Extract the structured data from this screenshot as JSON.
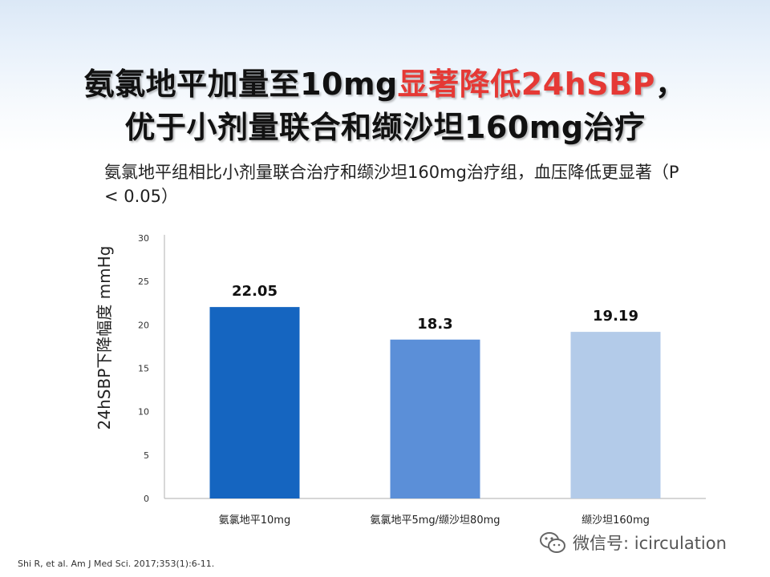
{
  "title": {
    "line1_a": "氨氯地平加量至10mg",
    "line1_b": "显著降低24hSBP",
    "line1_c": "，",
    "line2": "优于小剂量联合和缬沙坦160mg治疗",
    "highlight_color": "#e53935"
  },
  "subtitle": "氨氯地平组相比小剂量联合治疗和缬沙坦160mg治疗组，血压降低更显著（P < 0.05）",
  "citation": "Shi R, et al. Am J Med Sci. 2017;353(1):6-11.",
  "watermark": {
    "icon": "wechat-icon",
    "text": "微信号: icirculation"
  },
  "chart_data": {
    "type": "bar",
    "title": "",
    "ylabel": "24hSBP下降幅度 mmHg",
    "xlabel": "",
    "ylim": [
      0,
      30
    ],
    "yticks": [
      0,
      5,
      10,
      15,
      20,
      25,
      30
    ],
    "categories": [
      "氨氯地平10mg",
      "氨氯地平5mg/缬沙坦80mg",
      "缬沙坦160mg"
    ],
    "values": [
      22.05,
      18.3,
      19.19
    ],
    "value_labels": [
      "22.05",
      "18.3",
      "19.19"
    ],
    "colors": [
      "#1565c0",
      "#5b8fd8",
      "#b3cbe9"
    ],
    "grid": false
  }
}
